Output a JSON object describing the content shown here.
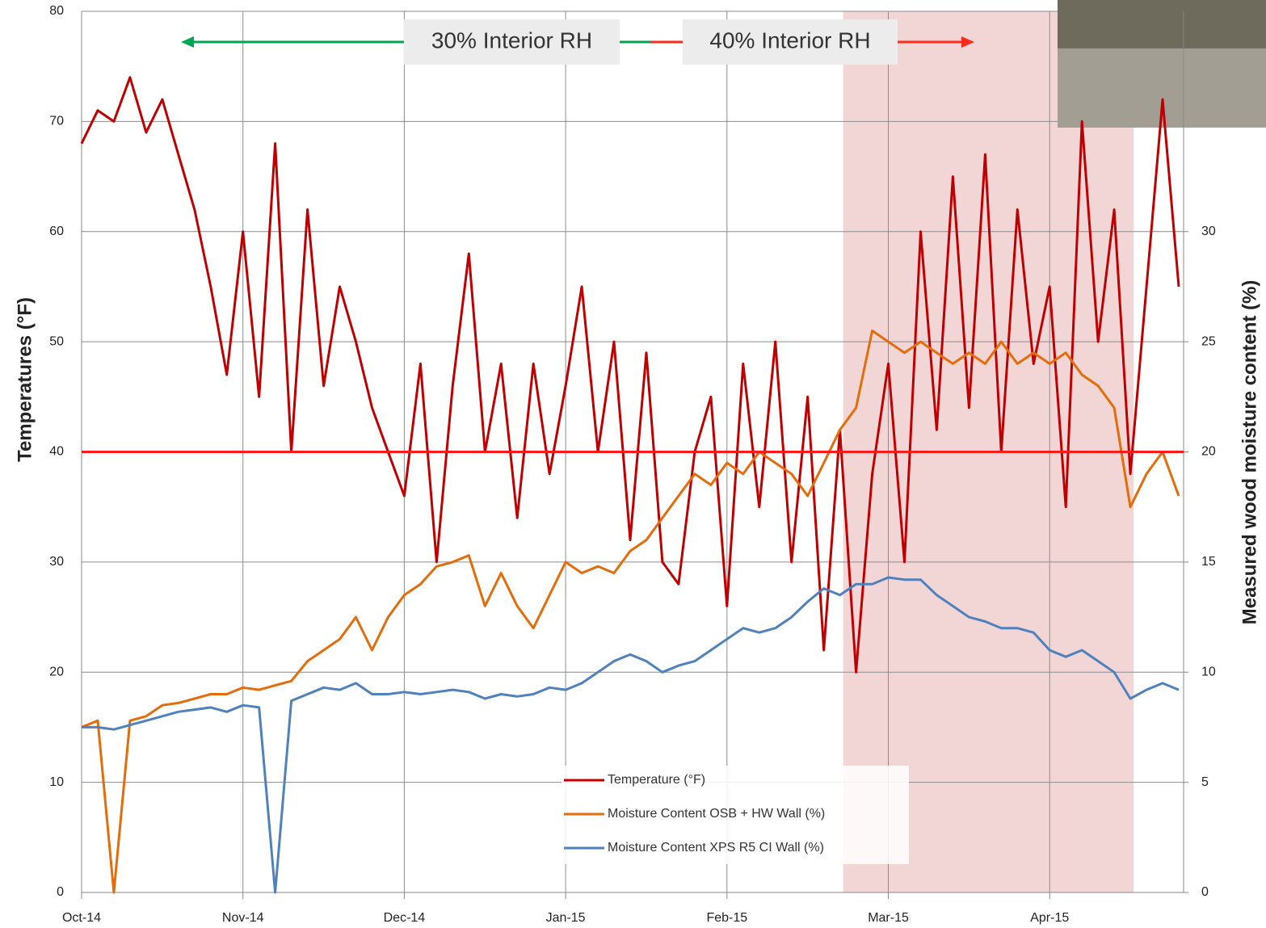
{
  "chart_data": {
    "type": "line",
    "y_label": "Temperatures (°F)",
    "y2_label": "Measured wood moisture content (%)",
    "annotations": [
      "30% Interior RH",
      "40% Interior RH"
    ],
    "x": [
      0,
      0.1,
      0.2,
      0.3,
      0.4,
      0.5,
      0.6,
      0.7,
      0.8,
      0.9,
      1,
      1.1,
      1.2,
      1.3,
      1.4,
      1.5,
      1.6,
      1.7,
      1.8,
      1.9,
      2,
      2.1,
      2.2,
      2.3,
      2.4,
      2.5,
      2.6,
      2.7,
      2.8,
      2.9,
      3,
      3.1,
      3.2,
      3.3,
      3.4,
      3.5,
      3.6,
      3.7,
      3.8,
      3.9,
      4,
      4.1,
      4.2,
      4.3,
      4.4,
      4.5,
      4.6,
      4.7,
      4.8,
      4.9,
      5,
      5.1,
      5.2,
      5.3,
      5.4,
      5.5,
      5.6,
      5.7,
      5.8,
      5.9,
      6,
      6.1,
      6.2,
      6.3,
      6.4,
      6.5,
      6.6,
      6.7,
      6.8
    ],
    "xlim": [
      0,
      6.83
    ],
    "xticks": [
      {
        "value": 0,
        "label": "Oct-14"
      },
      {
        "value": 1,
        "label": "Nov-14"
      },
      {
        "value": 2,
        "label": "Dec-14"
      },
      {
        "value": 3,
        "label": "Jan-15"
      },
      {
        "value": 4,
        "label": "Feb-15"
      },
      {
        "value": 5,
        "label": "Mar-15"
      },
      {
        "value": 6,
        "label": "Apr-15"
      }
    ],
    "ylim": [
      0,
      80
    ],
    "yticks": [
      0,
      10,
      20,
      30,
      40,
      50,
      60,
      70,
      80
    ],
    "y2lim": [
      0,
      40
    ],
    "y2ticks": [
      0,
      5,
      10,
      15,
      20,
      25,
      30
    ],
    "grid": true,
    "reference_line": 40,
    "reference_color": "#ff1a1a",
    "shaded_xrange": [
      4.72,
      6.52
    ],
    "shade_color": "#e8b4b4",
    "series": [
      {
        "name": "Temperature (°F)",
        "color": "#c00000",
        "axis": "y",
        "values": [
          68,
          71,
          70,
          74,
          69,
          72,
          67,
          62,
          55,
          47,
          60,
          45,
          68,
          40,
          62,
          46,
          55,
          50,
          44,
          40,
          36,
          48,
          30,
          46,
          58,
          40,
          48,
          34,
          48,
          38,
          46,
          55,
          40,
          50,
          32,
          49,
          30,
          28,
          40,
          45,
          26,
          48,
          35,
          50,
          30,
          45,
          22,
          42,
          20,
          38,
          48,
          30,
          60,
          42,
          65,
          44,
          67,
          40,
          62,
          48,
          55,
          35,
          70,
          50,
          62,
          38,
          55,
          72,
          55
        ]
      },
      {
        "name": "Moisture Content OSB + HW Wall (%)",
        "color": "#e46c0a",
        "axis": "y2",
        "values": [
          7.5,
          7.8,
          0,
          7.8,
          8,
          8.5,
          8.6,
          8.8,
          9,
          9,
          9.3,
          9.2,
          9.4,
          9.6,
          10.5,
          11,
          11.5,
          12.5,
          11,
          12.5,
          13.5,
          14,
          14.8,
          15,
          15.3,
          13,
          14.5,
          13,
          12,
          13.5,
          15,
          14.5,
          14.8,
          14.5,
          15.5,
          16,
          17,
          18,
          19,
          18.5,
          19.5,
          19,
          20,
          19.5,
          19,
          18,
          19.5,
          21,
          22,
          25.5,
          25,
          24.5,
          25,
          24.5,
          24,
          24.5,
          24,
          25,
          24,
          24.5,
          24,
          24.5,
          23.5,
          23,
          22,
          17.5,
          19,
          20,
          18
        ]
      },
      {
        "name": "Moisture Content XPS R5 CI Wall (%)",
        "color": "#4f81bd",
        "axis": "y2",
        "values": [
          7.5,
          7.5,
          7.4,
          7.6,
          7.8,
          8,
          8.2,
          8.3,
          8.4,
          8.2,
          8.5,
          8.4,
          0,
          8.7,
          9,
          9.3,
          9.2,
          9.5,
          9,
          9,
          9.1,
          9,
          9.1,
          9.2,
          9.1,
          8.8,
          9,
          8.9,
          9,
          9.3,
          9.2,
          9.5,
          10,
          10.5,
          10.8,
          10.5,
          10,
          10.3,
          10.5,
          11,
          11.5,
          12,
          11.8,
          12,
          12.5,
          13.2,
          13.8,
          13.5,
          14,
          14,
          14.3,
          14.2,
          14.2,
          13.5,
          13,
          12.5,
          12.3,
          12,
          12,
          11.8,
          11,
          10.7,
          11,
          10.5,
          10,
          8.8,
          9.2,
          9.5,
          9.2
        ]
      }
    ]
  }
}
